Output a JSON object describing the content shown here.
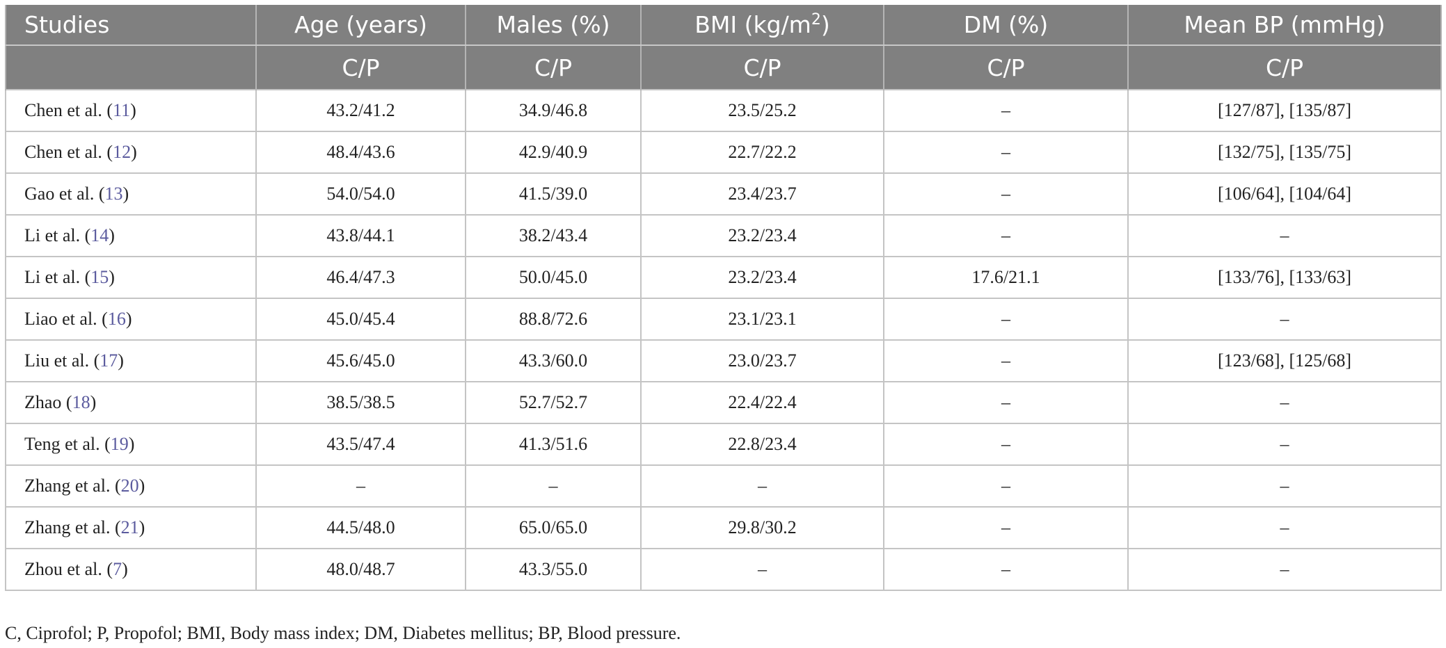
{
  "table": {
    "columns": [
      {
        "text": "Studies"
      },
      {
        "text": "Age (years)"
      },
      {
        "text": "Males (%)"
      },
      {
        "text": "BMI (kg/m",
        "sup": "2",
        "after": ")"
      },
      {
        "text": "DM (%)"
      },
      {
        "text": "Mean BP (mmHg)"
      }
    ],
    "subheader": [
      "",
      "C/P",
      "C/P",
      "C/P",
      "C/P",
      "C/P"
    ],
    "rows": [
      {
        "study": [
          "Chen et al. (",
          "11",
          ")"
        ],
        "cells": [
          "43.2/41.2",
          "34.9/46.8",
          "23.5/25.2",
          "–",
          "[127/87], [135/87]"
        ]
      },
      {
        "study": [
          "Chen et al. (",
          "12",
          ")"
        ],
        "cells": [
          "48.4/43.6",
          "42.9/40.9",
          "22.7/22.2",
          "–",
          "[132/75], [135/75]"
        ]
      },
      {
        "study": [
          "Gao et al. (",
          "13",
          ")"
        ],
        "cells": [
          "54.0/54.0",
          "41.5/39.0",
          "23.4/23.7",
          "–",
          "[106/64], [104/64]"
        ]
      },
      {
        "study": [
          "Li et al. (",
          "14",
          ")"
        ],
        "cells": [
          "43.8/44.1",
          "38.2/43.4",
          "23.2/23.4",
          "–",
          "–"
        ]
      },
      {
        "study": [
          "Li et al. (",
          "15",
          ")"
        ],
        "cells": [
          "46.4/47.3",
          "50.0/45.0",
          "23.2/23.4",
          "17.6/21.1",
          "[133/76], [133/63]"
        ]
      },
      {
        "study": [
          "Liao et al. (",
          "16",
          ")"
        ],
        "cells": [
          "45.0/45.4",
          "88.8/72.6",
          "23.1/23.1",
          "–",
          "–"
        ]
      },
      {
        "study": [
          "Liu et al. (",
          "17",
          ")"
        ],
        "cells": [
          "45.6/45.0",
          "43.3/60.0",
          "23.0/23.7",
          "–",
          "[123/68], [125/68]"
        ]
      },
      {
        "study": [
          "Zhao (",
          "18",
          ")"
        ],
        "cells": [
          "38.5/38.5",
          "52.7/52.7",
          "22.4/22.4",
          "–",
          "–"
        ]
      },
      {
        "study": [
          "Teng et al. (",
          "19",
          ")"
        ],
        "cells": [
          "43.5/47.4",
          "41.3/51.6",
          "22.8/23.4",
          "–",
          "–"
        ]
      },
      {
        "study": [
          "Zhang et al. (",
          "20",
          ")"
        ],
        "cells": [
          "–",
          "–",
          "–",
          "–",
          "–"
        ]
      },
      {
        "study": [
          "Zhang et al. (",
          "21",
          ")"
        ],
        "cells": [
          "44.5/48.0",
          "65.0/65.0",
          "29.8/30.2",
          "–",
          "–"
        ]
      },
      {
        "study": [
          "Zhou et al. (",
          "7",
          ")"
        ],
        "cells": [
          "48.0/48.7",
          "43.3/55.0",
          "–",
          "–",
          "–"
        ]
      }
    ],
    "footnote": "C, Ciprofol; P, Propofol; BMI, Body mass index; DM, Diabetes mellitus; BP, Blood pressure."
  }
}
